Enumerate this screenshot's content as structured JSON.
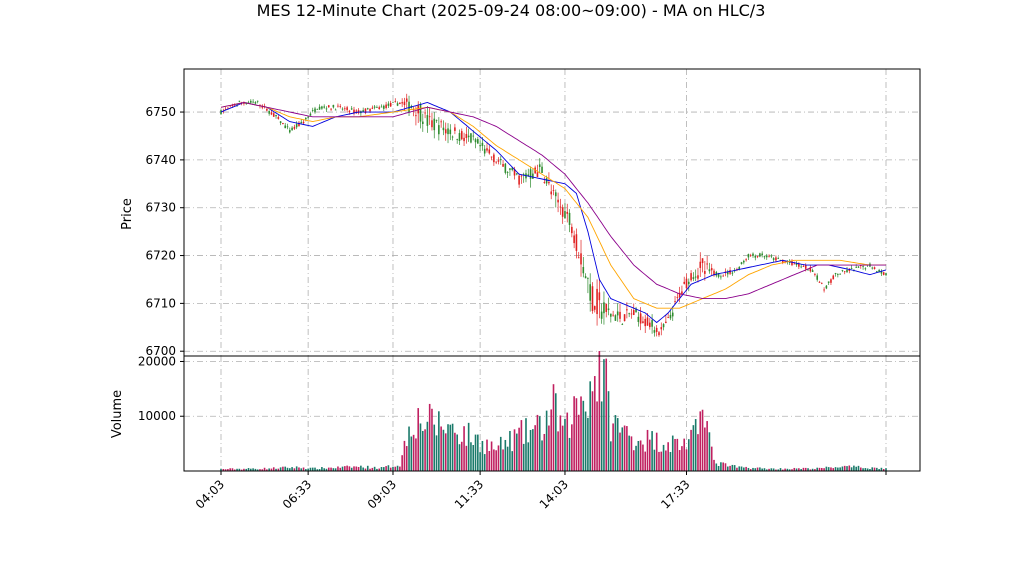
{
  "chart_data": {
    "type": "candlestick",
    "title": "MES 12-Minute Chart (2025-09-24 08:00~09:00) - MA on HLC/3",
    "price_panel": {
      "ylabel": "Price",
      "ylim": [
        6699,
        6759
      ],
      "yticks": [
        6700,
        6710,
        6720,
        6730,
        6740,
        6750
      ],
      "grid": true
    },
    "volume_panel": {
      "ylabel": "Volume",
      "ylim": [
        0,
        21000
      ],
      "yticks": [
        10000,
        20000
      ],
      "grid": true
    },
    "x_tick_labels": [
      "04:03",
      "06:33",
      "09:03",
      "11:33",
      "14:03",
      "17:33"
    ],
    "up_color": "#2e8b2e",
    "down_color": "#e02020",
    "ma_series": [
      {
        "color": "#0000dd",
        "points": [
          [
            0,
            6750
          ],
          [
            10,
            6752
          ],
          [
            20,
            6751
          ],
          [
            30,
            6748
          ],
          [
            40,
            6747
          ],
          [
            50,
            6749
          ],
          [
            60,
            6750
          ],
          [
            75,
            6750
          ],
          [
            90,
            6752
          ],
          [
            100,
            6750
          ],
          [
            110,
            6746
          ],
          [
            120,
            6742
          ],
          [
            130,
            6737
          ],
          [
            140,
            6736
          ],
          [
            150,
            6735
          ],
          [
            155,
            6733
          ],
          [
            160,
            6725
          ],
          [
            165,
            6715
          ],
          [
            170,
            6711
          ],
          [
            175,
            6710
          ],
          [
            180,
            6709
          ],
          [
            185,
            6708
          ],
          [
            190,
            6706
          ],
          [
            195,
            6708
          ],
          [
            200,
            6711
          ],
          [
            205,
            6714
          ],
          [
            215,
            6716
          ],
          [
            225,
            6717
          ],
          [
            235,
            6718
          ],
          [
            245,
            6719
          ],
          [
            255,
            6718
          ],
          [
            265,
            6718
          ],
          [
            275,
            6717
          ],
          [
            283,
            6716
          ],
          [
            290,
            6717
          ]
        ]
      },
      {
        "color": "#ffa500",
        "points": [
          [
            0,
            6751
          ],
          [
            10,
            6752
          ],
          [
            20,
            6751
          ],
          [
            30,
            6749
          ],
          [
            40,
            6748
          ],
          [
            50,
            6749
          ],
          [
            60,
            6749
          ],
          [
            75,
            6750
          ],
          [
            90,
            6751
          ],
          [
            100,
            6750
          ],
          [
            110,
            6747
          ],
          [
            120,
            6743
          ],
          [
            130,
            6740
          ],
          [
            140,
            6737
          ],
          [
            150,
            6734
          ],
          [
            160,
            6728
          ],
          [
            170,
            6718
          ],
          [
            180,
            6711
          ],
          [
            185,
            6710
          ],
          [
            190,
            6709
          ],
          [
            200,
            6709
          ],
          [
            210,
            6711
          ],
          [
            220,
            6713
          ],
          [
            230,
            6716
          ],
          [
            240,
            6718
          ],
          [
            250,
            6719
          ],
          [
            260,
            6719
          ],
          [
            270,
            6719
          ],
          [
            283,
            6718
          ],
          [
            290,
            6718
          ]
        ]
      },
      {
        "color": "#8b008b",
        "points": [
          [
            0,
            6751
          ],
          [
            10,
            6752
          ],
          [
            20,
            6751
          ],
          [
            30,
            6750
          ],
          [
            40,
            6749
          ],
          [
            50,
            6749
          ],
          [
            60,
            6749
          ],
          [
            75,
            6749
          ],
          [
            90,
            6751
          ],
          [
            100,
            6750
          ],
          [
            110,
            6749
          ],
          [
            120,
            6747
          ],
          [
            130,
            6744
          ],
          [
            140,
            6741
          ],
          [
            150,
            6737
          ],
          [
            160,
            6731
          ],
          [
            170,
            6724
          ],
          [
            180,
            6718
          ],
          [
            190,
            6714
          ],
          [
            200,
            6712
          ],
          [
            210,
            6711
          ],
          [
            220,
            6711
          ],
          [
            230,
            6712
          ],
          [
            240,
            6714
          ],
          [
            250,
            6716
          ],
          [
            260,
            6718
          ],
          [
            270,
            6718
          ],
          [
            283,
            6718
          ],
          [
            290,
            6718
          ]
        ]
      }
    ],
    "volume_profile": [
      [
        0,
        350
      ],
      [
        20,
        450
      ],
      [
        30,
        650
      ],
      [
        35,
        650
      ],
      [
        40,
        450
      ],
      [
        60,
        800
      ],
      [
        70,
        550
      ],
      [
        78,
        1200
      ],
      [
        83,
        9500
      ],
      [
        90,
        9000
      ],
      [
        100,
        8000
      ],
      [
        110,
        6000
      ],
      [
        120,
        4000
      ],
      [
        130,
        6500
      ],
      [
        140,
        8000
      ],
      [
        145,
        11500
      ],
      [
        150,
        7000
      ],
      [
        155,
        12000
      ],
      [
        160,
        14500
      ],
      [
        165,
        19000
      ],
      [
        168,
        15000
      ],
      [
        170,
        9000
      ],
      [
        180,
        6000
      ],
      [
        190,
        5500
      ],
      [
        200,
        5000
      ],
      [
        205,
        5500
      ],
      [
        208,
        7500
      ],
      [
        210,
        17500
      ],
      [
        212,
        8500
      ],
      [
        215,
        1500
      ],
      [
        225,
        700
      ],
      [
        240,
        400
      ],
      [
        260,
        450
      ],
      [
        270,
        800
      ],
      [
        280,
        650
      ],
      [
        290,
        450
      ]
    ],
    "price_profile": [
      [
        0,
        6750
      ],
      [
        8,
        6752
      ],
      [
        16,
        6752
      ],
      [
        24,
        6749
      ],
      [
        30,
        6746
      ],
      [
        36,
        6748
      ],
      [
        42,
        6751
      ],
      [
        50,
        6751
      ],
      [
        60,
        6750
      ],
      [
        70,
        6751
      ],
      [
        78,
        6752
      ],
      [
        85,
        6751
      ],
      [
        90,
        6748
      ],
      [
        100,
        6746
      ],
      [
        110,
        6744
      ],
      [
        120,
        6740
      ],
      [
        130,
        6736
      ],
      [
        140,
        6738
      ],
      [
        145,
        6732
      ],
      [
        152,
        6728
      ],
      [
        158,
        6718
      ],
      [
        162,
        6711
      ],
      [
        168,
        6708
      ],
      [
        175,
        6707
      ],
      [
        180,
        6708
      ],
      [
        186,
        6706
      ],
      [
        192,
        6704
      ],
      [
        196,
        6707
      ],
      [
        200,
        6712
      ],
      [
        205,
        6716
      ],
      [
        210,
        6717
      ],
      [
        218,
        6716
      ],
      [
        225,
        6717
      ],
      [
        230,
        6720
      ],
      [
        236,
        6720
      ],
      [
        244,
        6719
      ],
      [
        252,
        6718
      ],
      [
        258,
        6717
      ],
      [
        263,
        6713
      ],
      [
        268,
        6716
      ],
      [
        275,
        6717
      ],
      [
        283,
        6718
      ],
      [
        290,
        6716
      ]
    ]
  }
}
